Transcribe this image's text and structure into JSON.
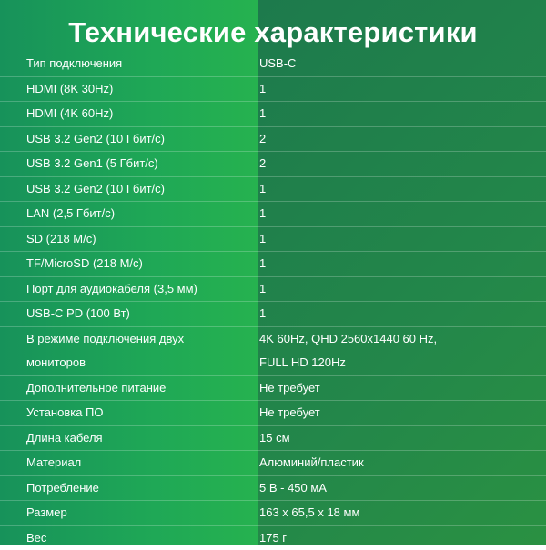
{
  "title": "Технические характеристики",
  "rows": [
    {
      "label": "Тип подключения",
      "value": "USB-C"
    },
    {
      "label": "HDMI (8K 30Hz)",
      "value": "1"
    },
    {
      "label": "HDMI (4K 60Hz)",
      "value": "1"
    },
    {
      "label": "USB 3.2 Gen2 (10 Гбит/с)",
      "value": "2"
    },
    {
      "label": "USB 3.2 Gen1 (5 Гбит/с)",
      "value": "2"
    },
    {
      "label": "USB 3.2 Gen2 (10 Гбит/с)",
      "value": "1"
    },
    {
      "label": "LAN (2,5 Гбит/с)",
      "value": "1"
    },
    {
      "label": "SD (218 М/с)",
      "value": "1"
    },
    {
      "label": "TF/MicroSD (218 М/с)",
      "value": "1"
    },
    {
      "label": "Порт для аудиокабеля (3,5 мм)",
      "value": "1"
    },
    {
      "label": "USB-C PD (100 Вт)",
      "value": "1"
    },
    {
      "label": "В режиме подключения двух\nмониторов",
      "value": "4K 60Hz, QHD 2560x1440 60 Hz,\nFULL HD 120Hz"
    },
    {
      "label": "Дополнительное питание",
      "value": "Не требует"
    },
    {
      "label": "Установка ПО",
      "value": "Не требует"
    },
    {
      "label": "Длина кабеля",
      "value": "15 см"
    },
    {
      "label": "Материал",
      "value": "Алюминий/пластик"
    },
    {
      "label": "Потребление",
      "value": "5 В - 450 мА"
    },
    {
      "label": "Размер",
      "value": "163 x 65,5 x 18 мм"
    },
    {
      "label": "Вес",
      "value": "175 г"
    }
  ]
}
